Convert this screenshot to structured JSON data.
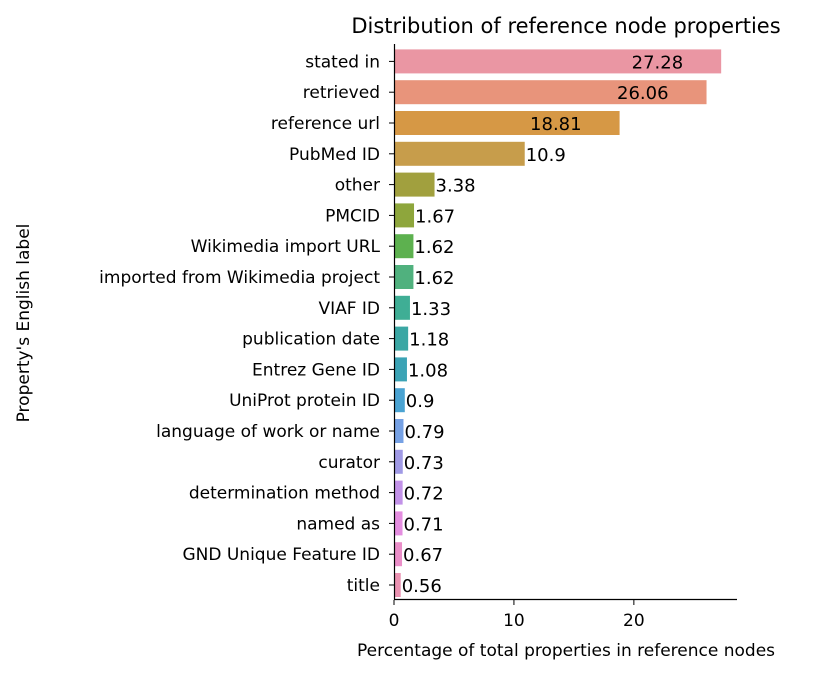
{
  "chart_data": {
    "type": "bar",
    "orientation": "horizontal",
    "title": "Distribution of reference node properties",
    "xlabel": "Percentage of total properties in reference nodes",
    "ylabel": "Property's English label",
    "xlim": [
      0,
      28.6
    ],
    "xticks": [
      0,
      10,
      20
    ],
    "grid": false,
    "categories": [
      "stated in",
      "retrieved",
      "reference url",
      "PubMed ID",
      "other",
      "PMCID",
      "Wikimedia import URL",
      "imported from Wikimedia project",
      "VIAF ID",
      "publication date",
      "Entrez Gene ID",
      "UniProt protein ID",
      "language of work or name",
      "curator",
      "determination method",
      "named as",
      "GND Unique Feature ID",
      "title"
    ],
    "values": [
      27.28,
      26.06,
      18.81,
      10.9,
      3.38,
      1.67,
      1.62,
      1.62,
      1.33,
      1.18,
      1.08,
      0.9,
      0.79,
      0.73,
      0.72,
      0.71,
      0.67,
      0.56
    ],
    "data_labels": [
      "27.28",
      "26.06",
      "18.81",
      "10.9",
      "3.38",
      "1.67",
      "1.62",
      "1.62",
      "1.33",
      "1.18",
      "1.08",
      "0.9",
      "0.79",
      "0.73",
      "0.72",
      "0.71",
      "0.67",
      "0.56"
    ],
    "colors": [
      "#ea96a3",
      "#e8947b",
      "#d69845",
      "#c79d4b",
      "#a1a03e",
      "#8ea63c",
      "#5db14f",
      "#50b17e",
      "#3fae95",
      "#3ba7a4",
      "#3ba3b5",
      "#4aa3d2",
      "#76a1e4",
      "#a09ae5",
      "#c292e8",
      "#e48ee0",
      "#ea8ec8",
      "#ea92b1"
    ]
  }
}
